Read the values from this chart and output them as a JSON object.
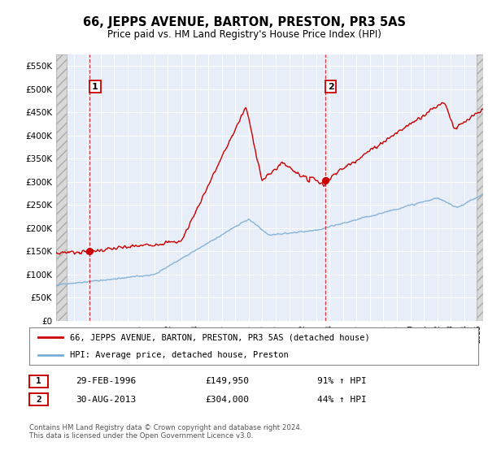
{
  "title": "66, JEPPS AVENUE, BARTON, PRESTON, PR3 5AS",
  "subtitle": "Price paid vs. HM Land Registry's House Price Index (HPI)",
  "ylim": [
    0,
    575000
  ],
  "yticks": [
    0,
    50000,
    100000,
    150000,
    200000,
    250000,
    300000,
    350000,
    400000,
    450000,
    500000,
    550000
  ],
  "ytick_labels": [
    "£0",
    "£50K",
    "£100K",
    "£150K",
    "£200K",
    "£250K",
    "£300K",
    "£350K",
    "£400K",
    "£450K",
    "£500K",
    "£550K"
  ],
  "xlim_start": 1993.7,
  "xlim_end": 2025.4,
  "transaction1_year": 1996.16,
  "transaction1_price": 149950,
  "transaction2_year": 2013.66,
  "transaction2_price": 304000,
  "hatch_left_end": 1994.5,
  "hatch_right_start": 2024.9,
  "legend_line1": "66, JEPPS AVENUE, BARTON, PRESTON, PR3 5AS (detached house)",
  "legend_line2": "HPI: Average price, detached house, Preston",
  "info1_date": "29-FEB-1996",
  "info1_price": "£149,950",
  "info1_hpi": "91% ↑ HPI",
  "info2_date": "30-AUG-2013",
  "info2_price": "£304,000",
  "info2_hpi": "44% ↑ HPI",
  "footer": "Contains HM Land Registry data © Crown copyright and database right 2024.\nThis data is licensed under the Open Government Licence v3.0.",
  "red_color": "#cc0000",
  "blue_color": "#7aadd4",
  "plot_bg": "#e8eef8",
  "grid_color": "#ffffff",
  "hatch_face": "#d8d8d8"
}
